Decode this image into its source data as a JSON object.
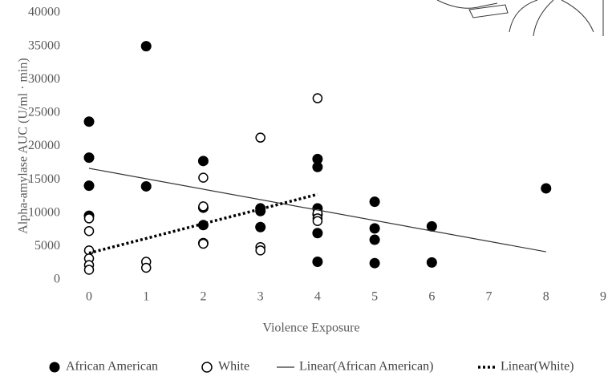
{
  "chart_data": {
    "type": "scatter",
    "x_label": "Violence Exposure",
    "y_label": "Alpha-amylase AUC (U/ml · min)",
    "xlim": [
      0,
      9
    ],
    "xticks": [
      0,
      1,
      2,
      3,
      4,
      5,
      6,
      7,
      8,
      9
    ],
    "ylim": [
      0,
      40000
    ],
    "yticks": [
      0,
      5000,
      10000,
      15000,
      20000,
      25000,
      30000,
      35000,
      40000
    ],
    "grid": false,
    "legend": "bottom",
    "series": [
      {
        "name": "African American",
        "color": "#000000",
        "style": "filled",
        "x": [
          0,
          0,
          0,
          0,
          1,
          1,
          2,
          2,
          2,
          2,
          3,
          3,
          3,
          4,
          4,
          4,
          4,
          4,
          4,
          5,
          5,
          5,
          5,
          6,
          6,
          8
        ],
        "values": [
          23700,
          18300,
          14100,
          9600,
          35000,
          14000,
          17800,
          10800,
          8200,
          5500,
          10700,
          10300,
          7900,
          18100,
          16900,
          10700,
          9800,
          7000,
          2700,
          11700,
          7700,
          6000,
          2500,
          8000,
          2600,
          13700
        ]
      },
      {
        "name": "White",
        "color": "#000000",
        "style": "open",
        "x": [
          0,
          0,
          0,
          0,
          0,
          0,
          1,
          1,
          2,
          2,
          2,
          3,
          3,
          3,
          4,
          4,
          4,
          4
        ],
        "values": [
          9200,
          7300,
          4400,
          3200,
          2200,
          1500,
          2700,
          1800,
          15300,
          11000,
          5400,
          21300,
          4900,
          4400,
          27200,
          10000,
          9200,
          8800
        ]
      },
      {
        "name": "Linear(African American)",
        "color": "#333333",
        "style": "solid-line",
        "x": [
          0,
          8
        ],
        "values": [
          16700,
          4200
        ]
      },
      {
        "name": "Linear(White)",
        "color": "#000000",
        "style": "dotted-line",
        "x": [
          0,
          4
        ],
        "values": [
          4000,
          12800
        ]
      }
    ]
  }
}
